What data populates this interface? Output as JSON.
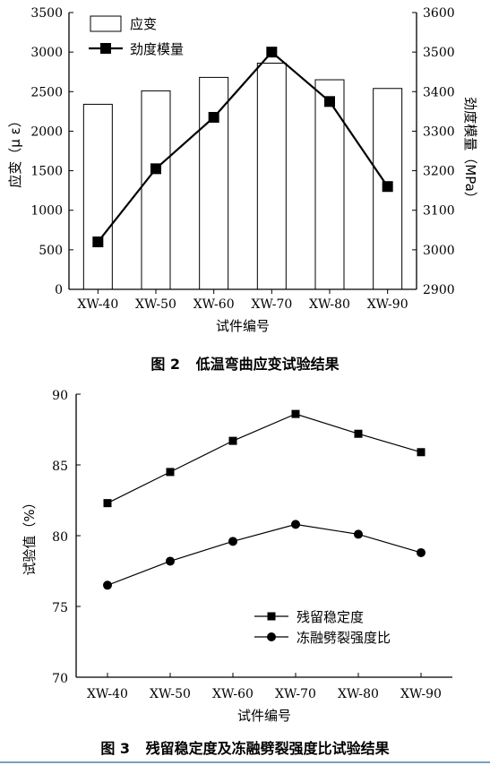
{
  "figures": [
    {
      "caption_num": "图 2",
      "caption_text": "低温弯曲应变试验结果"
    },
    {
      "caption_num": "图 3",
      "caption_text": "残留稳定度及冻融劈裂强度比试验结果"
    }
  ],
  "chart_data": [
    {
      "type": "bar+line",
      "categories": [
        "XW-40",
        "XW-50",
        "XW-60",
        "XW-70",
        "XW-80",
        "XW-90"
      ],
      "xlabel": "试件编号",
      "ylabel_left": "应变（μ ε）",
      "ylabel_right": "劲度模量（MPa）",
      "ylim_left": [
        0,
        3500
      ],
      "yticks_left": [
        "0",
        "500",
        "1000",
        "1500",
        "2000",
        "2500",
        "3000",
        "3500"
      ],
      "ylim_right": [
        2900,
        3600
      ],
      "yticks_right": [
        "2900",
        "3000",
        "3100",
        "3200",
        "3300",
        "3400",
        "3500",
        "3600"
      ],
      "series": [
        {
          "name": "应变",
          "kind": "bar",
          "axis": "left",
          "values": [
            2340,
            2510,
            2680,
            2860,
            2650,
            2540
          ]
        },
        {
          "name": "劲度模量",
          "kind": "line",
          "marker": "square",
          "axis": "right",
          "values": [
            3020,
            3205,
            3335,
            3500,
            3375,
            3160
          ]
        }
      ],
      "legend_position": "top-left"
    },
    {
      "type": "line",
      "categories": [
        "XW-40",
        "XW-50",
        "XW-60",
        "XW-70",
        "XW-80",
        "XW-90"
      ],
      "xlabel": "试件编号",
      "ylabel": "试验值（%）",
      "ylim": [
        70,
        90
      ],
      "yticks": [
        "70",
        "75",
        "80",
        "85",
        "90"
      ],
      "series": [
        {
          "name": "残留稳定度",
          "marker": "square",
          "values": [
            82.3,
            84.5,
            86.7,
            88.6,
            87.2,
            85.9
          ]
        },
        {
          "name": "冻融劈裂强度比",
          "marker": "circle",
          "values": [
            76.5,
            78.2,
            79.6,
            80.8,
            80.1,
            78.8
          ]
        }
      ],
      "legend_position": "bottom-right"
    }
  ]
}
